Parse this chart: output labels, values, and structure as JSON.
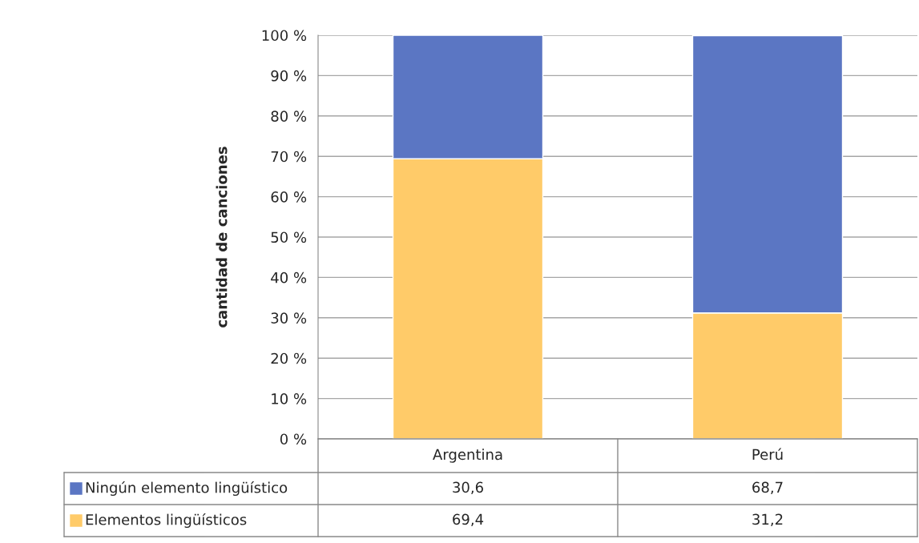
{
  "chart_data": {
    "type": "bar",
    "stacked": true,
    "ylabel": "cantidad de canciones",
    "categories": [
      "Argentina",
      "Perú"
    ],
    "series": [
      {
        "name": "Elementos lingüísticos",
        "color": "#ffcb69",
        "values": [
          69.4,
          31.2
        ],
        "value_labels": [
          "69,4",
          "31,2"
        ]
      },
      {
        "name": "Ningún elemento lingüístico",
        "color": "#5b76c3",
        "values": [
          30.6,
          68.7
        ],
        "value_labels": [
          "30,6",
          "68,7"
        ]
      }
    ],
    "ylim": [
      0,
      100
    ],
    "yticks": [
      {
        "value": 0,
        "label": "0 %"
      },
      {
        "value": 10,
        "label": "10 %"
      },
      {
        "value": 20,
        "label": "20 %"
      },
      {
        "value": 30,
        "label": "30 %"
      },
      {
        "value": 40,
        "label": "40 %"
      },
      {
        "value": 50,
        "label": "50 %"
      },
      {
        "value": 60,
        "label": "60 %"
      },
      {
        "value": 70,
        "label": "70 %"
      },
      {
        "value": 80,
        "label": "80 %"
      },
      {
        "value": 90,
        "label": "90 %"
      },
      {
        "value": 100,
        "label": "100 %"
      }
    ],
    "grid": "y",
    "legend": "bottom left"
  }
}
